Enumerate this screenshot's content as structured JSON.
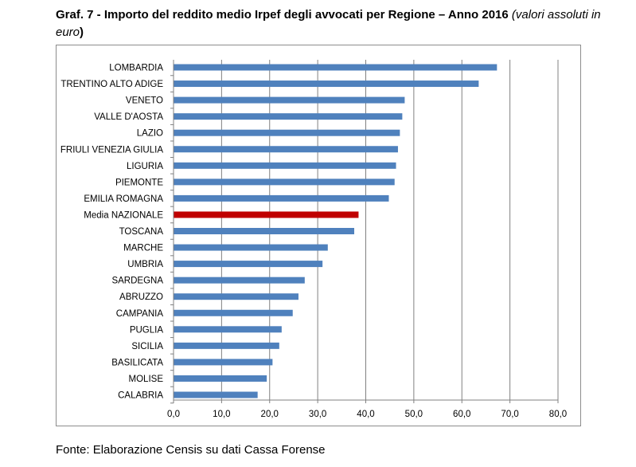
{
  "title": {
    "main": "Graf. 7 - Importo del reddito medio Irpef degli avvocati per Regione – Anno 2016",
    "note": "(valori assoluti in euro",
    "close": ")"
  },
  "source": "Fonte: Elaborazione Censis su dati Cassa Forense",
  "chart_data": {
    "type": "bar",
    "orientation": "horizontal",
    "categories": [
      "LOMBARDIA",
      "TRENTINO ALTO ADIGE",
      "VENETO",
      "VALLE D'AOSTA",
      "LAZIO",
      "FRIULI VENEZIA GIULIA",
      "LIGURIA",
      "PIEMONTE",
      "EMILIA ROMAGNA",
      "Media NAZIONALE",
      "TOSCANA",
      "MARCHE",
      "UMBRIA",
      "SARDEGNA",
      "ABRUZZO",
      "CAMPANIA",
      "PUGLIA",
      "SICILIA",
      "BASILICATA",
      "MOLISE",
      "CALABRIA"
    ],
    "values": [
      67.3,
      63.5,
      48.1,
      47.6,
      47.1,
      46.7,
      46.3,
      46.0,
      44.8,
      38.5,
      37.6,
      32.1,
      31.0,
      27.3,
      26.0,
      24.8,
      22.5,
      22.0,
      20.6,
      19.4,
      17.5
    ],
    "highlight": "Media NAZIONALE",
    "xlim": [
      0,
      80
    ],
    "xticks": [
      "0,0",
      "10,0",
      "20,0",
      "30,0",
      "40,0",
      "50,0",
      "60,0",
      "70,0",
      "80,0"
    ],
    "grid": "vertical",
    "colors": {
      "bar": "#4f81bd",
      "highlight": "#c00000",
      "grid": "#808080",
      "axis": "#808080"
    }
  }
}
